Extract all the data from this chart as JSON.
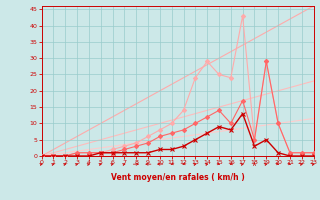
{
  "x": [
    0,
    1,
    2,
    3,
    4,
    5,
    6,
    7,
    8,
    9,
    10,
    11,
    12,
    13,
    14,
    15,
    16,
    17,
    18,
    19,
    20,
    21,
    22,
    23
  ],
  "ref_line1_y": [
    0,
    2,
    4,
    6,
    8,
    10,
    12,
    14,
    16,
    18,
    20,
    22,
    24,
    26,
    28,
    30,
    32,
    34,
    36,
    38,
    40,
    42,
    44,
    46
  ],
  "ref_line2_y": [
    0,
    1,
    2,
    3,
    4,
    5,
    6,
    7,
    8,
    9,
    10,
    11,
    12,
    13,
    14,
    15,
    16,
    17,
    18,
    19,
    20,
    21,
    22,
    23
  ],
  "ref_line3_y": [
    0,
    0.5,
    1,
    1.5,
    2,
    2.5,
    3,
    3.5,
    4,
    4.5,
    5,
    5.5,
    6,
    6.5,
    7,
    7.5,
    8,
    8.5,
    9,
    9.5,
    10,
    10.5,
    11,
    11.5
  ],
  "data_line1_y": [
    0,
    0,
    0,
    0,
    0,
    1,
    1,
    1,
    1,
    1,
    2,
    2,
    3,
    5,
    7,
    9,
    8,
    13,
    3,
    5,
    1,
    0,
    0,
    0
  ],
  "data_line2_y": [
    0,
    0,
    0,
    1,
    1,
    1,
    1,
    2,
    3,
    4,
    6,
    7,
    8,
    10,
    12,
    14,
    10,
    17,
    5,
    29,
    10,
    1,
    1,
    1
  ],
  "data_line3_y": [
    0,
    0,
    0,
    1,
    1,
    1,
    2,
    3,
    4,
    6,
    8,
    10,
    14,
    24,
    29,
    25,
    24,
    43,
    5,
    29,
    10,
    1,
    1,
    1
  ],
  "wind_arrows": [
    45,
    45,
    45,
    45,
    45,
    45,
    45,
    45,
    90,
    270,
    270,
    225,
    225,
    45,
    45,
    135,
    225,
    45,
    0,
    45,
    135,
    135,
    45,
    45
  ],
  "bg_color": "#cce8e8",
  "grid_color": "#99cccc",
  "ref1_color": "#ffaaaa",
  "ref2_color": "#ffbbbb",
  "ref3_color": "#ffcccc",
  "data1_color": "#cc0000",
  "data2_color": "#ff6666",
  "data3_color": "#ffaaaa",
  "arrow_color": "#cc0000",
  "xlabel": "Vent moyen/en rafales ( km/h )",
  "ylim": [
    0,
    46
  ],
  "xlim": [
    0,
    23
  ],
  "yticks": [
    0,
    5,
    10,
    15,
    20,
    25,
    30,
    35,
    40,
    45
  ],
  "xticks": [
    0,
    1,
    2,
    3,
    4,
    5,
    6,
    7,
    8,
    9,
    10,
    11,
    12,
    13,
    14,
    15,
    16,
    17,
    18,
    19,
    20,
    21,
    22,
    23
  ]
}
